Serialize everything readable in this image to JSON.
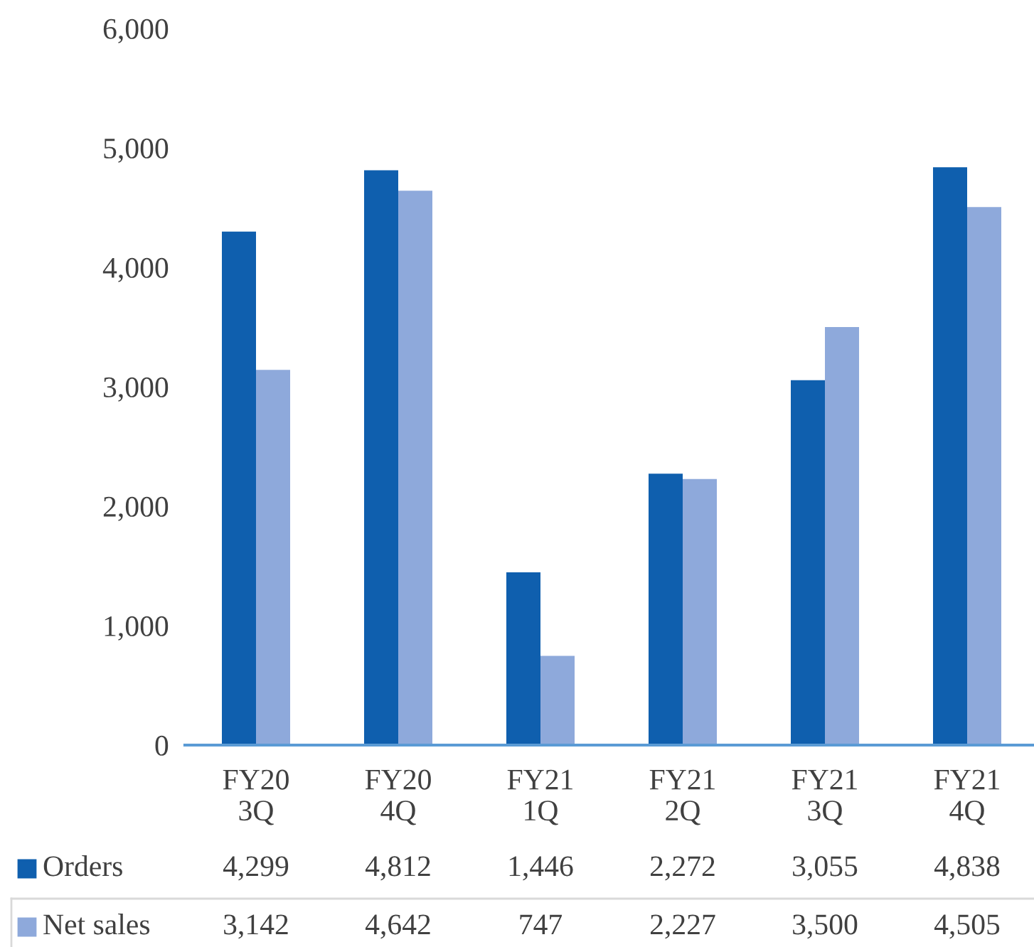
{
  "chart_data": {
    "type": "bar",
    "categories": [
      "FY20\n3Q",
      "FY20\n4Q",
      "FY21\n1Q",
      "FY21\n2Q",
      "FY21\n3Q",
      "FY21\n4Q"
    ],
    "series": [
      {
        "name": "Orders",
        "color": "#0f5fae",
        "values": [
          4299,
          4812,
          1446,
          2272,
          3055,
          4838
        ],
        "value_labels": [
          "4,299",
          "4,812",
          "1,446",
          "2,272",
          "3,055",
          "4,838"
        ]
      },
      {
        "name": "Net sales",
        "color": "#8ea9db",
        "values": [
          3142,
          4642,
          747,
          2227,
          3500,
          4505
        ],
        "value_labels": [
          "3,142",
          "4,642",
          "747",
          "2,227",
          "3,500",
          "4,505"
        ]
      }
    ],
    "ylim": [
      0,
      6000
    ],
    "yticks": [
      {
        "value": 0,
        "label": "0"
      },
      {
        "value": 1000,
        "label": "1,000"
      },
      {
        "value": 2000,
        "label": "2,000"
      },
      {
        "value": 3000,
        "label": "3,000"
      },
      {
        "value": 4000,
        "label": "4,000"
      },
      {
        "value": 5000,
        "label": "5,000"
      },
      {
        "value": 6000,
        "label": "6,000"
      }
    ],
    "grid": false,
    "legend": "bottom"
  }
}
